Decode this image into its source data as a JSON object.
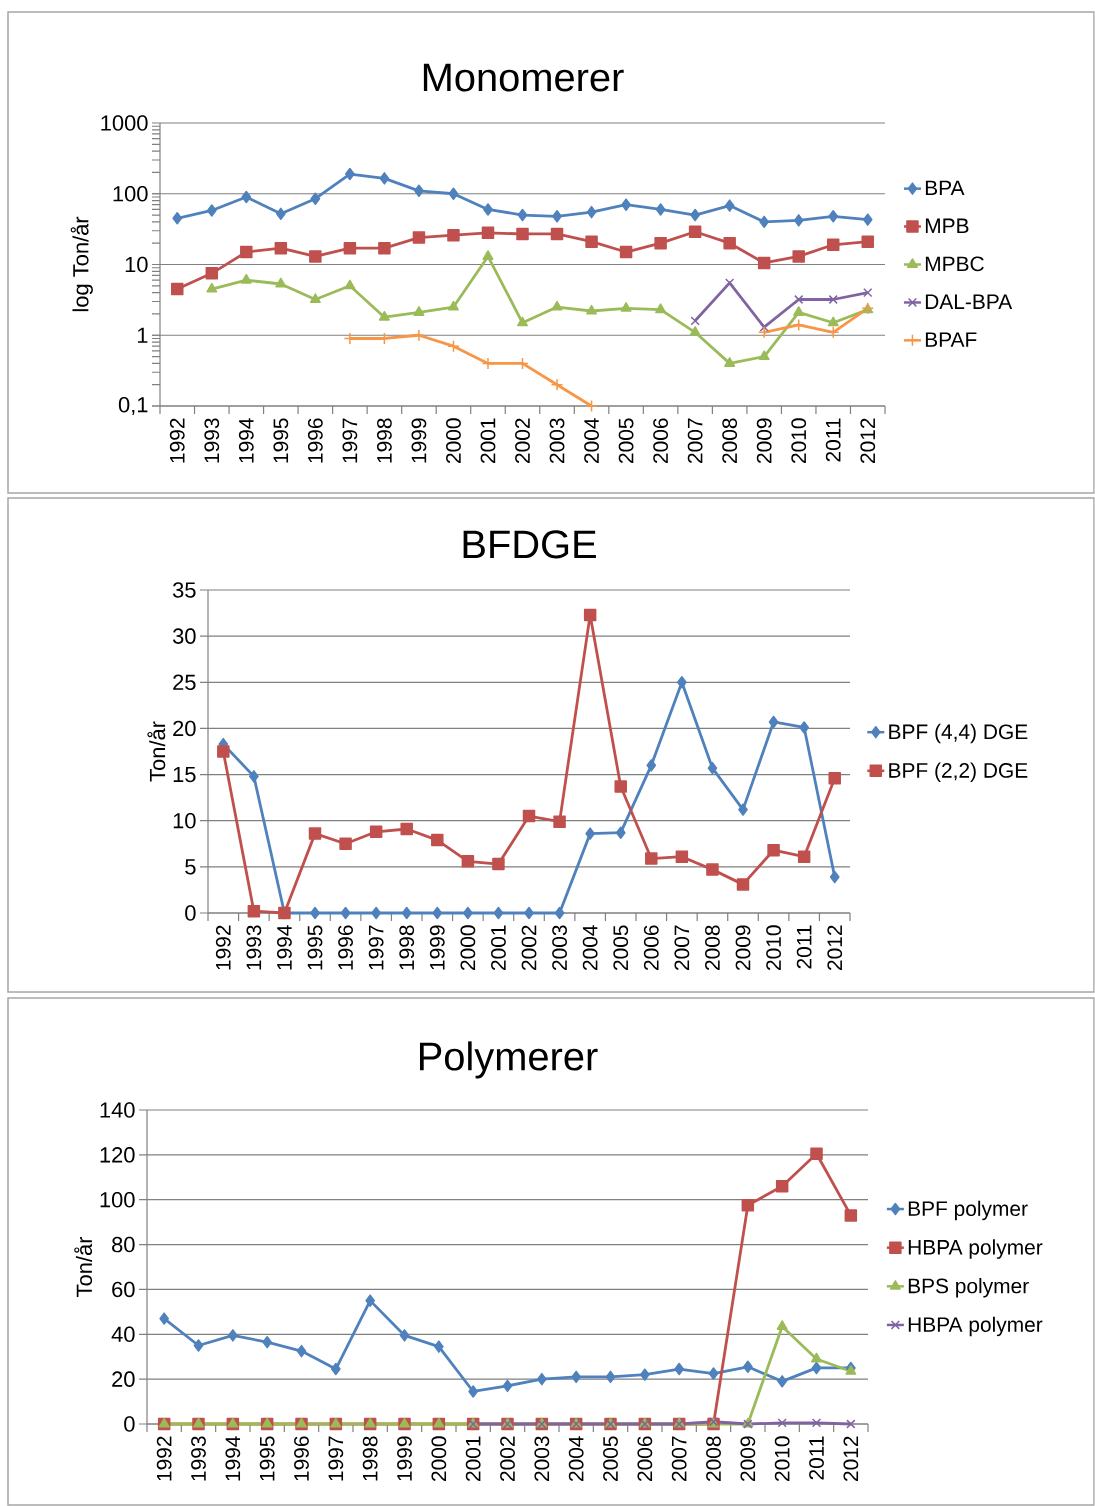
{
  "chart_data": [
    {
      "type": "line",
      "title": "Monomerer",
      "ylabel": "log Ton/år",
      "log": "y",
      "grid": "y",
      "legend": "right",
      "line_style": "solid",
      "categories": [
        "1992",
        "1993",
        "1994",
        "1995",
        "1996",
        "1997",
        "1998",
        "1999",
        "2000",
        "2001",
        "2002",
        "2003",
        "2004",
        "2005",
        "2006",
        "2007",
        "2008",
        "2009",
        "2010",
        "2011",
        "2012"
      ],
      "ylim": [
        0.1,
        1000
      ],
      "yticks": [
        {
          "value": 0.1,
          "label": "0,1"
        },
        1,
        10,
        100,
        1000
      ],
      "series": [
        {
          "name": "BPA",
          "color": "#4f81bd",
          "marker": "diamond",
          "values": [
            45,
            58,
            90,
            52,
            85,
            190,
            165,
            110,
            100,
            60,
            50,
            48,
            55,
            70,
            60,
            50,
            68,
            40,
            42,
            48,
            43
          ]
        },
        {
          "name": "MPB",
          "color": "#c0504d",
          "marker": "square",
          "values": [
            4.5,
            7.5,
            15,
            17,
            13,
            17,
            17,
            24,
            26,
            28,
            27,
            27,
            21,
            15,
            20,
            29,
            20,
            10.5,
            13,
            19,
            21
          ]
        },
        {
          "name": "MPBC",
          "color": "#9bbb59",
          "marker": "triangle",
          "values": [
            null,
            4.5,
            6,
            5.3,
            3.2,
            5,
            1.8,
            2.1,
            2.5,
            13,
            1.5,
            2.5,
            2.2,
            2.4,
            2.3,
            1.1,
            0.4,
            0.5,
            2.1,
            1.5,
            2.3
          ]
        },
        {
          "name": "DAL-BPA",
          "color": "#8064a2",
          "marker": "cross",
          "values": [
            null,
            null,
            null,
            null,
            null,
            null,
            null,
            null,
            null,
            null,
            null,
            null,
            null,
            null,
            null,
            1.6,
            5.5,
            1.3,
            3.2,
            3.2,
            4
          ]
        },
        {
          "name": "BPAF",
          "color": "#f79646",
          "marker": "plus",
          "values": [
            null,
            null,
            null,
            null,
            null,
            0.9,
            0.9,
            1.0,
            0.7,
            0.4,
            0.4,
            0.2,
            0.1,
            null,
            null,
            null,
            null,
            1.1,
            1.4,
            1.1,
            2.4
          ]
        }
      ]
    },
    {
      "type": "line",
      "title": "BFDGE",
      "ylabel": "Ton/år",
      "grid": "y",
      "legend": "right",
      "line_style": "solid",
      "categories": [
        "1992",
        "1993",
        "1994",
        "1995",
        "1996",
        "1997",
        "1998",
        "1999",
        "2000",
        "2001",
        "2002",
        "2003",
        "2004",
        "2005",
        "2006",
        "2007",
        "2008",
        "2009",
        "2010",
        "2011",
        "2012"
      ],
      "ylim": [
        0,
        35
      ],
      "yticks": [
        0,
        5,
        10,
        15,
        20,
        25,
        30,
        35
      ],
      "series": [
        {
          "name": "BPF (4,4) DGE",
          "color": "#4f81bd",
          "marker": "diamond",
          "values": [
            18.3,
            14.8,
            0,
            0,
            0,
            0,
            0,
            0,
            0,
            0,
            0,
            0,
            8.6,
            8.7,
            16,
            25,
            15.7,
            11.2,
            20.7,
            20.1,
            3.9
          ]
        },
        {
          "name": "BPF (2,2) DGE",
          "color": "#c0504d",
          "marker": "square",
          "values": [
            17.5,
            0.2,
            0,
            8.6,
            7.5,
            8.8,
            9.1,
            7.9,
            5.6,
            5.3,
            10.5,
            9.9,
            32.3,
            13.7,
            5.9,
            6.1,
            4.7,
            3.1,
            6.8,
            6.1,
            14.6
          ]
        }
      ]
    },
    {
      "type": "line",
      "title": "Polymerer",
      "ylabel": "Ton/år",
      "grid": "y",
      "legend": "right",
      "line_style": "solid",
      "categories": [
        "1992",
        "1993",
        "1994",
        "1995",
        "1996",
        "1997",
        "1998",
        "1999",
        "2000",
        "2001",
        "2002",
        "2003",
        "2004",
        "2005",
        "2006",
        "2007",
        "2008",
        "2009",
        "2010",
        "2011",
        "2012"
      ],
      "ylim": [
        0,
        140
      ],
      "yticks": [
        0,
        20,
        40,
        60,
        80,
        100,
        120,
        140
      ],
      "series": [
        {
          "name": "BPF polymer",
          "color": "#4f81bd",
          "marker": "diamond",
          "values": [
            47,
            35,
            39.5,
            36.5,
            32.5,
            24.5,
            55,
            39.5,
            34.5,
            14.5,
            17,
            20,
            21,
            21,
            22,
            24.5,
            22.5,
            25.5,
            19,
            25,
            25
          ]
        },
        {
          "name": "HBPA polymer",
          "color": "#c0504d",
          "marker": "square",
          "values": [
            0,
            0,
            0,
            0,
            0,
            0,
            0,
            0,
            0,
            0,
            0,
            0,
            0,
            0,
            0,
            0,
            0,
            97.5,
            106,
            120.5,
            93
          ]
        },
        {
          "name": "BPS polymer",
          "color": "#9bbb59",
          "marker": "triangle",
          "values": [
            0,
            0,
            0,
            0,
            0,
            0,
            0,
            0,
            0,
            0,
            0,
            0,
            0,
            0,
            0,
            0,
            0,
            0,
            43.5,
            29,
            23.5
          ]
        },
        {
          "name": "HBPA polymer",
          "color": "#8064a2",
          "marker": "cross",
          "values": [
            null,
            null,
            null,
            null,
            null,
            null,
            null,
            null,
            null,
            0,
            0,
            0,
            0,
            0,
            0,
            0,
            1,
            0,
            0.5,
            0.5,
            0
          ]
        }
      ]
    }
  ]
}
